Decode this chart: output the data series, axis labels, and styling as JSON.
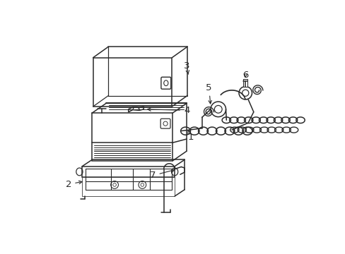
{
  "background_color": "#ffffff",
  "line_color": "#2a2a2a",
  "line_width": 1.1,
  "label_fontsize": 9.5
}
